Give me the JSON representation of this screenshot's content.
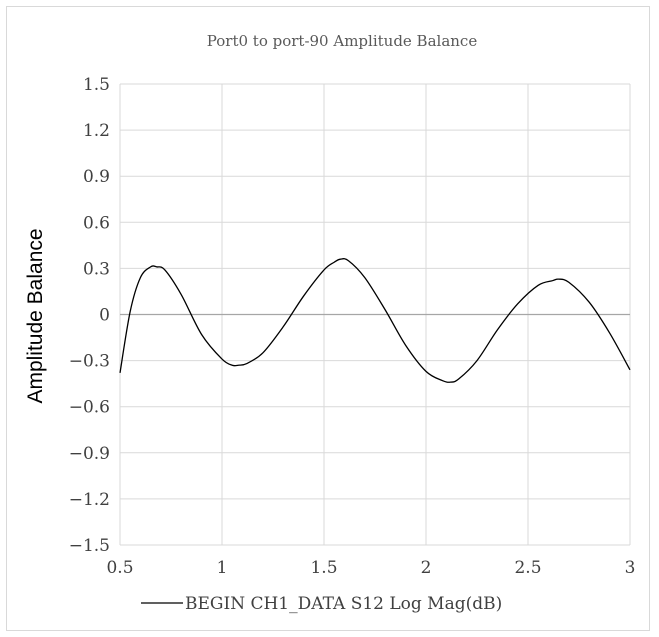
{
  "chart_data": {
    "type": "line",
    "title": "Port0 to port-90 Amplitude Balance",
    "xlabel": "",
    "ylabel": "Amplitude Balance",
    "xlim": [
      0.5,
      3
    ],
    "ylim": [
      -1.5,
      1.5
    ],
    "x_ticks": [
      "0.5",
      "1",
      "1.5",
      "2",
      "2.5",
      "3"
    ],
    "y_ticks": [
      "1.5",
      "1.2",
      "0.9",
      "0.6",
      "0.3",
      "0",
      "-0.3",
      "-0.6",
      "-0.9",
      "-1.2",
      "-1.5"
    ],
    "grid": true,
    "legend": "bottom",
    "series": [
      {
        "name": "BEGIN CH1_DATA S12 Log Mag(dB)",
        "color": "#000000",
        "x": [
          0.5,
          0.55,
          0.6,
          0.65,
          0.68,
          0.72,
          0.8,
          0.9,
          1.0,
          1.05,
          1.08,
          1.12,
          1.2,
          1.3,
          1.4,
          1.5,
          1.55,
          1.58,
          1.62,
          1.7,
          1.8,
          1.9,
          2.0,
          2.08,
          2.12,
          2.16,
          2.25,
          2.35,
          2.45,
          2.55,
          2.62,
          2.65,
          2.7,
          2.8,
          2.9,
          3.0
        ],
        "y": [
          -0.38,
          0.02,
          0.24,
          0.31,
          0.31,
          0.29,
          0.13,
          -0.13,
          -0.29,
          -0.33,
          -0.33,
          -0.32,
          -0.25,
          -0.08,
          0.12,
          0.29,
          0.34,
          0.36,
          0.35,
          0.24,
          0.03,
          -0.2,
          -0.37,
          -0.43,
          -0.44,
          -0.42,
          -0.3,
          -0.1,
          0.07,
          0.19,
          0.22,
          0.23,
          0.21,
          0.08,
          -0.12,
          -0.36
        ]
      }
    ]
  }
}
